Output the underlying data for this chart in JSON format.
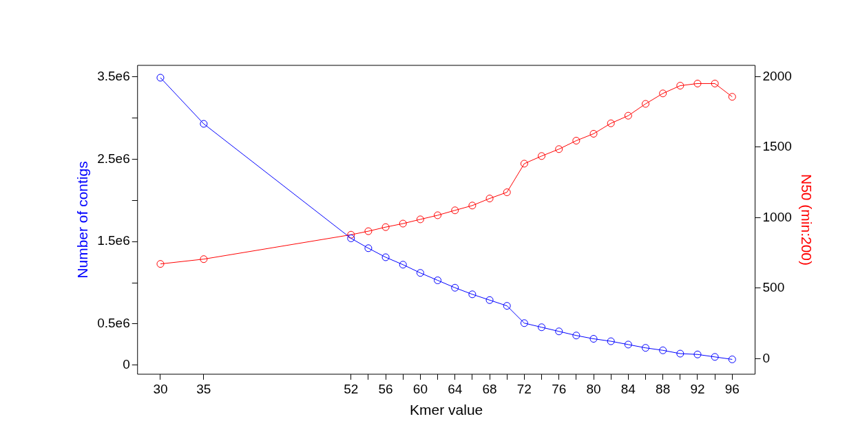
{
  "chart_data": {
    "type": "line",
    "xlabel": "Kmer value",
    "ylabel": "Number of contigs",
    "y2label": "N50 (min:200)",
    "x": [
      30,
      35,
      52,
      54,
      56,
      58,
      60,
      62,
      64,
      66,
      68,
      70,
      72,
      74,
      76,
      78,
      80,
      82,
      84,
      86,
      88,
      90,
      92,
      94,
      96
    ],
    "series": [
      {
        "color": "#0000ff",
        "values": [
          3490000,
          2930000,
          1540000,
          1420000,
          1310000,
          1220000,
          1120000,
          1030000,
          940000,
          860000,
          790000,
          720000,
          510000,
          460000,
          410000,
          360000,
          320000,
          290000,
          250000,
          210000,
          180000,
          140000,
          130000,
          100000,
          70000
        ]
      },
      {
        "color": "#ff0000",
        "axis": "y2",
        "values": [
          672,
          706,
          879,
          904,
          933,
          958,
          988,
          1017,
          1052,
          1086,
          1136,
          1180,
          1383,
          1437,
          1486,
          1546,
          1595,
          1669,
          1723,
          1807,
          1881,
          1936,
          1951,
          1951,
          1857
        ]
      }
    ],
    "xlim": [
      27.36,
      98.64
    ],
    "xticks": [
      30,
      35,
      52,
      {
        "value": 54,
        "label": null
      },
      56,
      {
        "value": 58,
        "label": null
      },
      60,
      {
        "value": 62,
        "label": null
      },
      64,
      {
        "value": 66,
        "label": null
      },
      68,
      {
        "value": 70,
        "label": null
      },
      72,
      {
        "value": 74,
        "label": null
      },
      76,
      {
        "value": 78,
        "label": null
      },
      80,
      {
        "value": 82,
        "label": null
      },
      84,
      {
        "value": 86,
        "label": null
      },
      88,
      {
        "value": 90,
        "label": null
      },
      92,
      {
        "value": 94,
        "label": null
      },
      96
    ],
    "ylim": [
      -110000,
      3640000
    ],
    "yticks": [
      0,
      {
        "value": 500000,
        "label": "0.5e6"
      },
      {
        "value": 1000000,
        "label": null
      },
      {
        "value": 1500000,
        "label": "1.5e6"
      },
      {
        "value": 2000000,
        "label": null
      },
      {
        "value": 2500000,
        "label": "2.5e6"
      },
      {
        "value": 3000000,
        "label": null
      },
      {
        "value": 3500000,
        "label": "3.5e6"
      }
    ],
    "y2lim": [
      -110,
      2080
    ],
    "y2ticks": [
      0,
      500,
      1000,
      1500,
      2000
    ],
    "grid": false,
    "legend": false,
    "marker": "circle",
    "line_style": "solid"
  }
}
